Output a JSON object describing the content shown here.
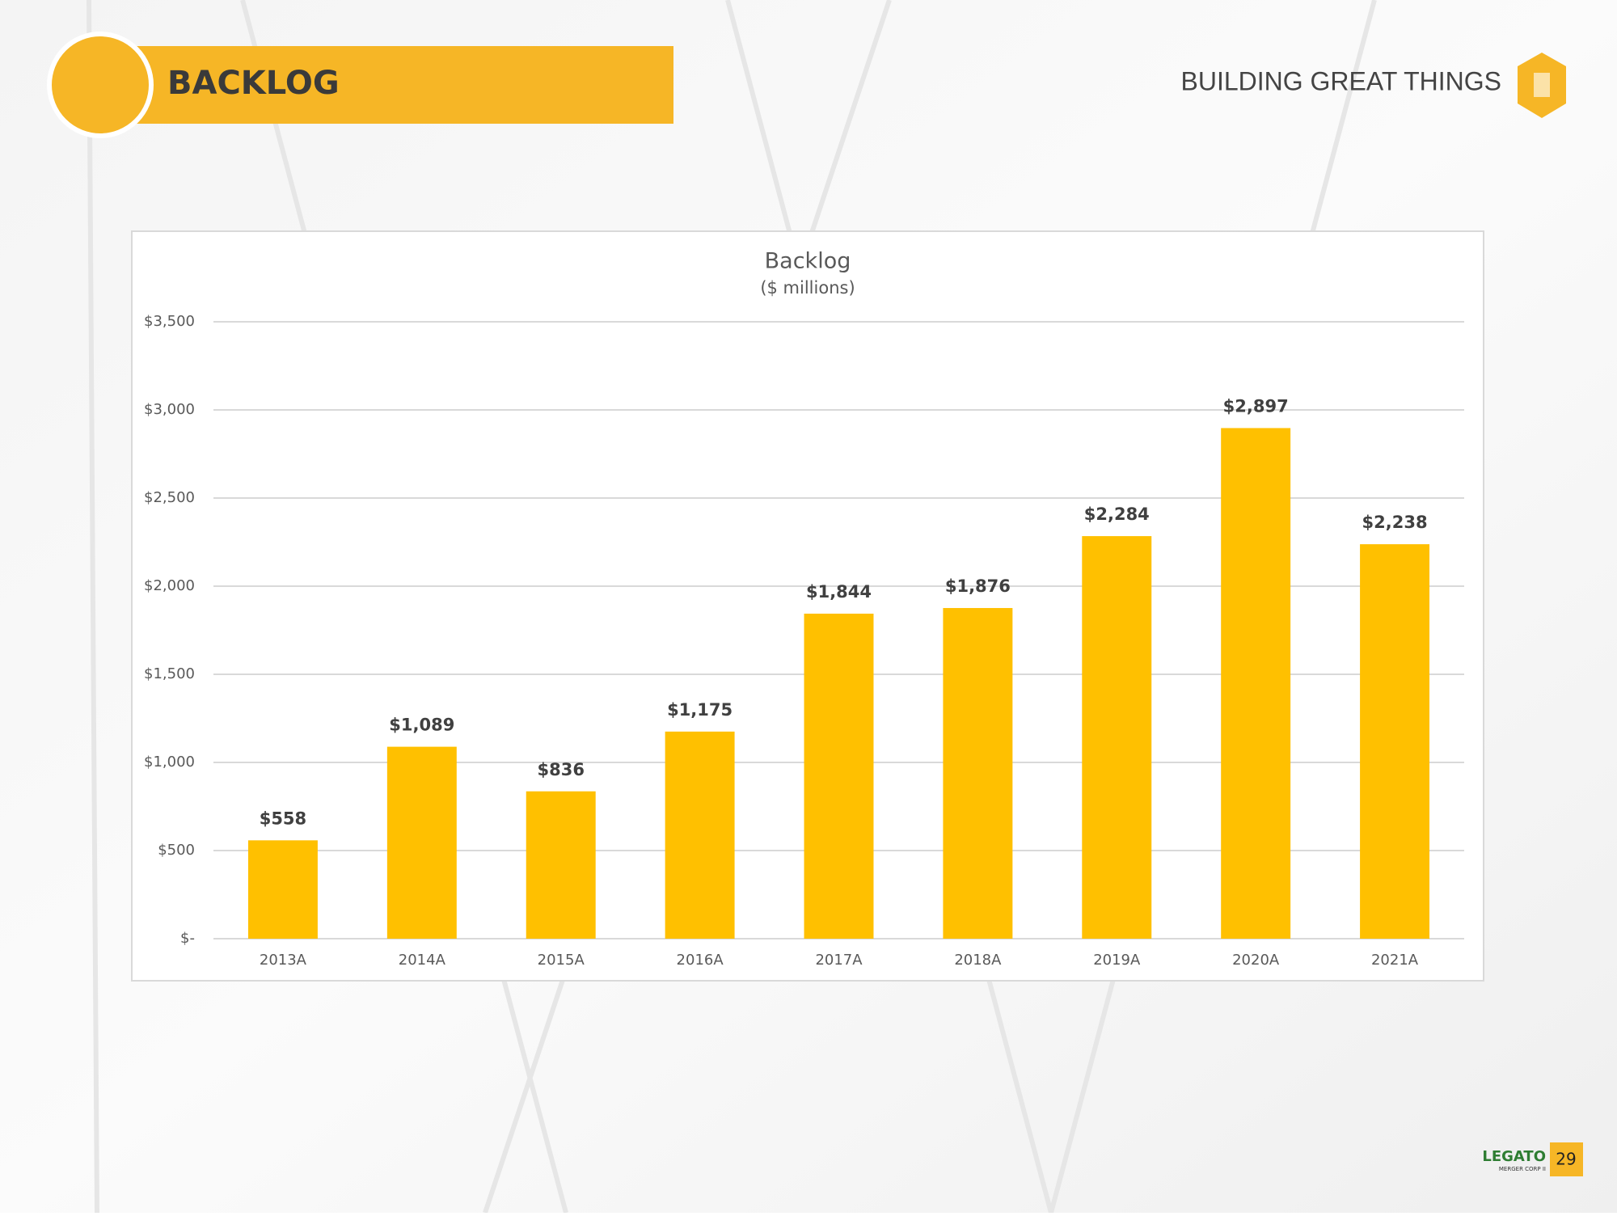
{
  "header": {
    "title": "BACKLOG",
    "tagline": "BUILDING GREAT THINGS"
  },
  "footer": {
    "logo": "LEGATO",
    "logo_sub": "MERGER CORP II",
    "page_number": "29"
  },
  "chart_data": {
    "type": "bar",
    "title": "Backlog",
    "subtitle": "($ millions)",
    "categories": [
      "2013A",
      "2014A",
      "2015A",
      "2016A",
      "2017A",
      "2018A",
      "2019A",
      "2020A",
      "2021A"
    ],
    "values": [
      558,
      1089,
      836,
      1175,
      1844,
      1876,
      2284,
      2897,
      2238
    ],
    "value_labels": [
      "$558",
      "$1,089",
      "$836",
      "$1,175",
      "$1,844",
      "$1,876",
      "$2,284",
      "$2,897",
      "$2,238"
    ],
    "color": "#ffc000",
    "ylim": [
      0,
      3500
    ],
    "yticks": [
      {
        "value": 0,
        "label": "$-"
      },
      {
        "value": 500,
        "label": "$500"
      },
      {
        "value": 1000,
        "label": "$1,000"
      },
      {
        "value": 1500,
        "label": "$1,500"
      },
      {
        "value": 2000,
        "label": "$2,000"
      },
      {
        "value": 2500,
        "label": "$2,500"
      },
      {
        "value": 3000,
        "label": "$3,000"
      },
      {
        "value": 3500,
        "label": "$3,500"
      }
    ],
    "grid": true
  }
}
